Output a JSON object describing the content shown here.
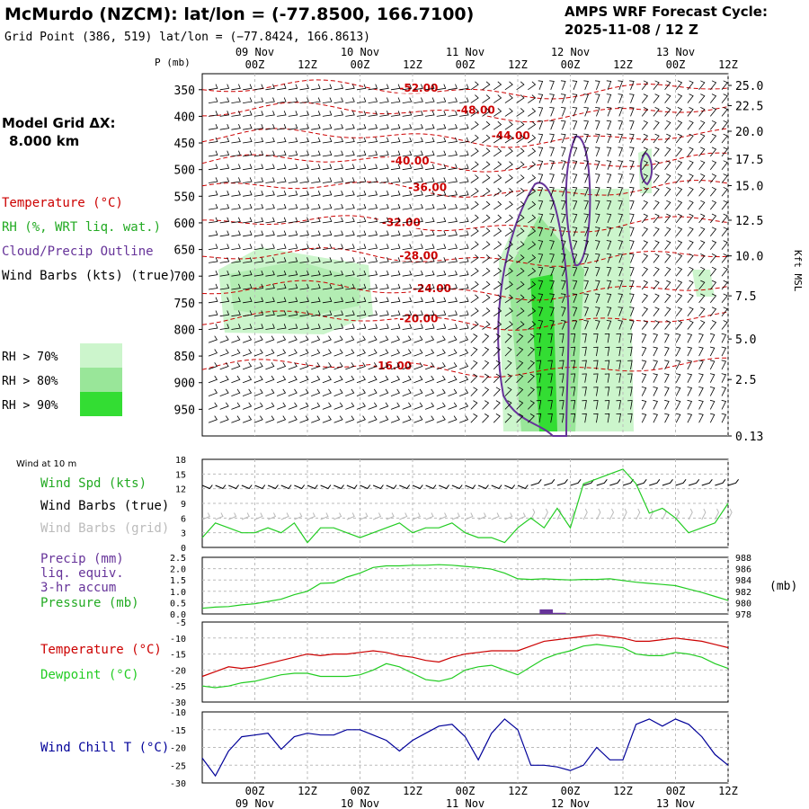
{
  "header": {
    "title": "McMurdo (NZCM):  lat/lon = (-77.8500, 166.7100)",
    "grid_point": "Grid Point (386, 519) lat/lon = (−77.8424, 166.8613)",
    "cycle_line1": "AMPS WRF Forecast Cycle:",
    "cycle_line2": "2025-11-08 / 12  Z"
  },
  "left_panel": {
    "model_grid_line1": "Model Grid ΔX:",
    "model_grid_line2": "8.000 km",
    "legend_temperature": "Temperature (°C)",
    "legend_rh": "RH (%, WRT liq. wat.)",
    "legend_cloud": "Cloud/Precip Outline",
    "legend_wind": "Wind Barbs (kts) (true)",
    "rh70": "RH > 70%",
    "rh80": "RH > 80%",
    "rh90": "RH > 90%",
    "wind10m_title": "Wind at 10 m",
    "wind_spd": "Wind Spd (kts)",
    "wind_barbs_true": "Wind Barbs (true)",
    "wind_barbs_grid": "Wind Barbs (grid)",
    "precip_line1": "Precip (mm)",
    "precip_line2": "liq. equiv.",
    "precip_line3": "3-hr accum",
    "pressure_label": "Pressure (mb)",
    "temp_label": "Temperature (°C)",
    "dewpoint_label": "Dewpoint (°C)",
    "windchill_label": "Wind Chill T (°C)"
  },
  "colors": {
    "temperature": "#cc0000",
    "rh": "#22aa22",
    "cloud": "#663399",
    "rh70": "#ccf5cc",
    "rh80": "#99e699",
    "rh90": "#33dd33",
    "wind_grid": "#bbbbbb",
    "windchill": "#000099",
    "dewpoint": "#22cc22"
  },
  "chart_data": [
    {
      "id": "cross-section",
      "type": "heatmap",
      "title": "Time-height cross section",
      "p_axis_label": "P (mb)",
      "right_axis_label": "Kft MSL",
      "pressure_ticks": [
        350,
        400,
        450,
        500,
        550,
        600,
        650,
        700,
        750,
        800,
        850,
        900,
        950
      ],
      "height_ticks": [
        {
          "label": "25.0",
          "p": 342
        },
        {
          "label": "22.5",
          "p": 380
        },
        {
          "label": "20.0",
          "p": 428
        },
        {
          "label": "17.5",
          "p": 480
        },
        {
          "label": "15.0",
          "p": 530
        },
        {
          "label": "12.5",
          "p": 595
        },
        {
          "label": "10.0",
          "p": 662
        },
        {
          "label": "7.5",
          "p": 737
        },
        {
          "label": "5.0",
          "p": 818
        },
        {
          "label": "2.5",
          "p": 894
        },
        {
          "label": "0.13",
          "p": 1000
        }
      ],
      "time_top_labels": [
        "00Z",
        "12Z",
        "00Z",
        "12Z",
        "00Z",
        "12Z",
        "00Z",
        "12Z",
        "00Z",
        "12Z"
      ],
      "time_bottom_labels": [
        "00Z",
        "12Z",
        "00Z",
        "12Z",
        "00Z",
        "12Z",
        "00Z",
        "12Z",
        "00Z",
        "12Z"
      ],
      "time_hours": [
        12,
        24,
        36,
        48,
        60,
        72,
        84,
        96,
        108,
        120
      ],
      "date_labels": [
        "09 Nov",
        "10 Nov",
        "11 Nov",
        "12 Nov",
        "13 Nov"
      ],
      "date_hours": [
        12,
        36,
        60,
        84,
        108
      ],
      "x_range_hours": [
        0,
        120
      ],
      "p_range": [
        320,
        1000
      ],
      "isotherms": [
        {
          "label": "-52.00",
          "hour": 45,
          "p": 350
        },
        {
          "label": "-48.00",
          "hour": 58,
          "p": 392
        },
        {
          "label": "-44.00",
          "hour": 66,
          "p": 440
        },
        {
          "label": "-40.00",
          "hour": 43,
          "p": 487
        },
        {
          "label": "-36.00",
          "hour": 47,
          "p": 537
        },
        {
          "label": "-32.00",
          "hour": 41,
          "p": 603
        },
        {
          "label": "-28.00",
          "hour": 45,
          "p": 665
        },
        {
          "label": "-24.00",
          "hour": 48,
          "p": 727
        },
        {
          "label": "-20.00",
          "hour": 45,
          "p": 783
        },
        {
          "label": "-16.00",
          "hour": 39,
          "p": 872
        }
      ]
    },
    {
      "id": "wind-10m",
      "type": "line",
      "ylim": [
        0,
        18
      ],
      "yticks": [
        0,
        3,
        6,
        9,
        12,
        15,
        18
      ],
      "x_hours": [
        0,
        3,
        6,
        9,
        12,
        15,
        18,
        21,
        24,
        27,
        30,
        33,
        36,
        39,
        42,
        45,
        48,
        51,
        54,
        57,
        60,
        63,
        66,
        69,
        72,
        75,
        78,
        81,
        84,
        87,
        90,
        93,
        96,
        99,
        102,
        105,
        108,
        111,
        114,
        117,
        120
      ],
      "series": [
        {
          "name": "Wind Spd (kts)",
          "values": [
            2,
            5,
            4,
            3,
            3,
            4,
            3,
            5,
            1,
            4,
            4,
            3,
            2,
            3,
            4,
            5,
            3,
            4,
            4,
            5,
            3,
            2,
            2,
            1,
            4,
            6,
            4,
            8,
            4,
            13,
            14,
            15,
            16,
            13,
            7,
            8,
            6,
            3,
            4,
            5,
            9
          ]
        }
      ]
    },
    {
      "id": "precip-pressure",
      "type": "line",
      "precip_ylim": [
        0,
        2.5
      ],
      "precip_ticks": [
        0.0,
        0.5,
        1.0,
        1.5,
        2.0,
        2.5
      ],
      "pressure_ylim": [
        978,
        988
      ],
      "pressure_ticks": [
        978,
        980,
        982,
        984,
        986,
        988
      ],
      "pressure_unit": "(mb)",
      "x_hours": [
        0,
        3,
        6,
        9,
        12,
        15,
        18,
        21,
        24,
        27,
        30,
        33,
        36,
        39,
        42,
        45,
        48,
        51,
        54,
        57,
        60,
        63,
        66,
        69,
        72,
        75,
        78,
        81,
        84,
        87,
        90,
        93,
        96,
        99,
        102,
        105,
        108,
        111,
        114,
        117,
        120
      ],
      "series": [
        {
          "name": "Pressure (mb)",
          "values": [
            979.0,
            979.2,
            979.3,
            979.6,
            979.8,
            980.2,
            980.6,
            981.4,
            982.0,
            983.4,
            983.5,
            984.5,
            985.2,
            986.2,
            986.5,
            986.5,
            986.6,
            986.6,
            986.7,
            986.6,
            986.4,
            986.2,
            985.9,
            985.2,
            984.2,
            984.1,
            984.2,
            984.1,
            984.0,
            984.1,
            984.1,
            984.2,
            983.9,
            983.6,
            983.4,
            983.2,
            983.0,
            982.4,
            981.8,
            981.1,
            980.4
          ]
        }
      ],
      "precip": [
        {
          "hour_start": 77,
          "hour_end": 80,
          "value": 0.2
        },
        {
          "hour_start": 80,
          "hour_end": 83,
          "value": 0.05
        }
      ]
    },
    {
      "id": "temp-dewpoint",
      "type": "line",
      "ylim": [
        -30,
        -5
      ],
      "yticks": [
        -30,
        -25,
        -20,
        -15,
        -10,
        -5
      ],
      "x_hours": [
        0,
        3,
        6,
        9,
        12,
        15,
        18,
        21,
        24,
        27,
        30,
        33,
        36,
        39,
        42,
        45,
        48,
        51,
        54,
        57,
        60,
        63,
        66,
        69,
        72,
        75,
        78,
        81,
        84,
        87,
        90,
        93,
        96,
        99,
        102,
        105,
        108,
        111,
        114,
        117,
        120
      ],
      "series": [
        {
          "name": "Temperature (°C)",
          "values": [
            -22,
            -20.5,
            -19,
            -19.5,
            -19,
            -18,
            -17,
            -16,
            -15,
            -15.5,
            -15,
            -15,
            -14.5,
            -14,
            -14.5,
            -15.5,
            -16,
            -17,
            -17.5,
            -16,
            -15,
            -14.5,
            -14,
            -14,
            -14,
            -12.5,
            -11,
            -10.5,
            -10,
            -9.5,
            -9,
            -9.5,
            -10,
            -11,
            -11,
            -10.5,
            -10,
            -10.5,
            -11,
            -12,
            -13
          ]
        },
        {
          "name": "Dewpoint (°C)",
          "values": [
            -25,
            -25.5,
            -25,
            -24,
            -23.5,
            -22.5,
            -21.5,
            -21,
            -21,
            -22,
            -22,
            -22,
            -21.5,
            -20,
            -18,
            -19,
            -21,
            -23,
            -23.5,
            -22.5,
            -20,
            -19,
            -18.5,
            -20,
            -21.5,
            -19,
            -16.5,
            -15,
            -14,
            -12.5,
            -12,
            -12.5,
            -13,
            -15,
            -15.5,
            -15.5,
            -14.5,
            -15,
            -16,
            -18,
            -19.5
          ]
        }
      ]
    },
    {
      "id": "wind-chill",
      "type": "line",
      "ylim": [
        -30,
        -10
      ],
      "yticks": [
        -30,
        -25,
        -20,
        -15,
        -10
      ],
      "x_hours": [
        0,
        3,
        6,
        9,
        12,
        15,
        18,
        21,
        24,
        27,
        30,
        33,
        36,
        39,
        42,
        45,
        48,
        51,
        54,
        57,
        60,
        63,
        66,
        69,
        72,
        75,
        78,
        81,
        84,
        87,
        90,
        93,
        96,
        99,
        102,
        105,
        108,
        111,
        114,
        117,
        120
      ],
      "series": [
        {
          "name": "Wind Chill T (°C)",
          "values": [
            -23,
            -28,
            -21,
            -17,
            -16.5,
            -16,
            -20.5,
            -17,
            -16,
            -16.5,
            -16.5,
            -15,
            -15,
            -16.5,
            -18,
            -21,
            -18,
            -16,
            -14,
            -13.5,
            -17,
            -23.5,
            -16,
            -12,
            -15,
            -25,
            -25,
            -25.5,
            -26.5,
            -25,
            -20,
            -23.5,
            -23.5,
            -13.5,
            -12,
            -14,
            -12,
            -13.5,
            -17,
            -22,
            -25
          ]
        }
      ]
    }
  ]
}
